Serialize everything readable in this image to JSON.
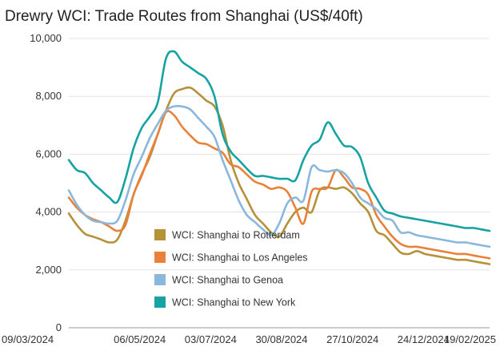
{
  "chart_data": {
    "type": "line",
    "title": "Drewry WCI: Trade Routes from Shanghai (US$/40ft)",
    "xlabel": "",
    "ylabel": "",
    "x_tick_labels": [
      "09/03/2024",
      "06/05/2024",
      "03/07/2024",
      "30/08/2024",
      "27/10/2024",
      "24/12/2024",
      "19/02/2025"
    ],
    "y_tick_labels": [
      "0",
      "2,000",
      "4,000",
      "6,000",
      "8,000",
      "10,000"
    ],
    "y_ticks": [
      0,
      2000,
      4000,
      6000,
      8000,
      10000
    ],
    "ylim": [
      0,
      10000
    ],
    "x": [
      "2024-03-07",
      "2024-03-14",
      "2024-03-21",
      "2024-03-28",
      "2024-04-04",
      "2024-04-11",
      "2024-04-18",
      "2024-04-25",
      "2024-05-02",
      "2024-05-09",
      "2024-05-16",
      "2024-05-23",
      "2024-05-30",
      "2024-06-06",
      "2024-06-13",
      "2024-06-20",
      "2024-06-27",
      "2024-07-04",
      "2024-07-11",
      "2024-07-18",
      "2024-07-25",
      "2024-08-01",
      "2024-08-08",
      "2024-08-15",
      "2024-08-22",
      "2024-08-29",
      "2024-09-05",
      "2024-09-12",
      "2024-09-19",
      "2024-09-26",
      "2024-10-03",
      "2024-10-10",
      "2024-10-17",
      "2024-10-24",
      "2024-10-31",
      "2024-11-07",
      "2024-11-14",
      "2024-11-21",
      "2024-11-28",
      "2024-12-05",
      "2024-12-12",
      "2024-12-19",
      "2024-12-26",
      "2025-01-02",
      "2025-01-09",
      "2025-01-16",
      "2025-01-23",
      "2025-01-30",
      "2025-02-06",
      "2025-02-13",
      "2025-02-20",
      "2025-02-27",
      "2025-03-06"
    ],
    "grid": true,
    "legend_position": "bottom-center-inside",
    "series": [
      {
        "name": "WCI: Shanghai to Rotterdam",
        "color": "#b5913a",
        "values": [
          3950,
          3550,
          3250,
          3150,
          3050,
          2950,
          3050,
          3700,
          4600,
          5300,
          5900,
          6700,
          7500,
          8100,
          8250,
          8300,
          8100,
          7850,
          7650,
          7000,
          5800,
          5000,
          4450,
          3900,
          3600,
          3300,
          3150,
          3600,
          4000,
          4150,
          4000,
          4750,
          4850,
          4800,
          4850,
          4650,
          4300,
          4000,
          3350,
          3200,
          2900,
          2600,
          2550,
          2650,
          2550,
          2500,
          2450,
          2400,
          2350,
          2350,
          2300,
          2250,
          2200
        ]
      },
      {
        "name": "WCI: Shanghai to Los Angeles",
        "color": "#e8823b",
        "values": [
          4500,
          4150,
          3900,
          3750,
          3650,
          3500,
          3350,
          3550,
          4600,
          5250,
          6000,
          6700,
          7450,
          7350,
          6950,
          6650,
          6400,
          6350,
          6200,
          6050,
          5650,
          5550,
          5300,
          5050,
          4950,
          4800,
          4850,
          4700,
          4150,
          3600,
          4700,
          4800,
          4850,
          5450,
          5200,
          4850,
          4800,
          4600,
          3900,
          3500,
          3150,
          2900,
          2800,
          2800,
          2750,
          2700,
          2650,
          2600,
          2550,
          2550,
          2500,
          2450,
          2400
        ]
      },
      {
        "name": "WCI: Shanghai to Genoa",
        "color": "#8ab8dc",
        "values": [
          4750,
          4250,
          3900,
          3700,
          3650,
          3600,
          3700,
          4400,
          5300,
          5900,
          6550,
          7050,
          7500,
          7650,
          7650,
          7550,
          7250,
          6950,
          6600,
          5800,
          5100,
          4400,
          3900,
          3650,
          3400,
          3200,
          3600,
          4300,
          4500,
          4400,
          5550,
          5450,
          5400,
          5450,
          5350,
          5000,
          4500,
          4300,
          4100,
          3800,
          3700,
          3300,
          3300,
          3200,
          3150,
          3100,
          3050,
          3000,
          2950,
          2950,
          2900,
          2850,
          2800
        ]
      },
      {
        "name": "WCI: Shanghai to New York",
        "color": "#17a2a3",
        "values": [
          5800,
          5450,
          5350,
          5000,
          4750,
          4500,
          4350,
          5150,
          6200,
          6900,
          7300,
          7800,
          9300,
          9550,
          9200,
          9000,
          8800,
          8600,
          8000,
          6700,
          6100,
          5800,
          5500,
          5250,
          5250,
          5200,
          5150,
          5150,
          5100,
          5800,
          6300,
          6500,
          7100,
          6700,
          6300,
          6250,
          5900,
          5000,
          4500,
          4050,
          3950,
          3850,
          3800,
          3750,
          3700,
          3650,
          3600,
          3550,
          3500,
          3450,
          3450,
          3400,
          3350
        ]
      }
    ]
  }
}
